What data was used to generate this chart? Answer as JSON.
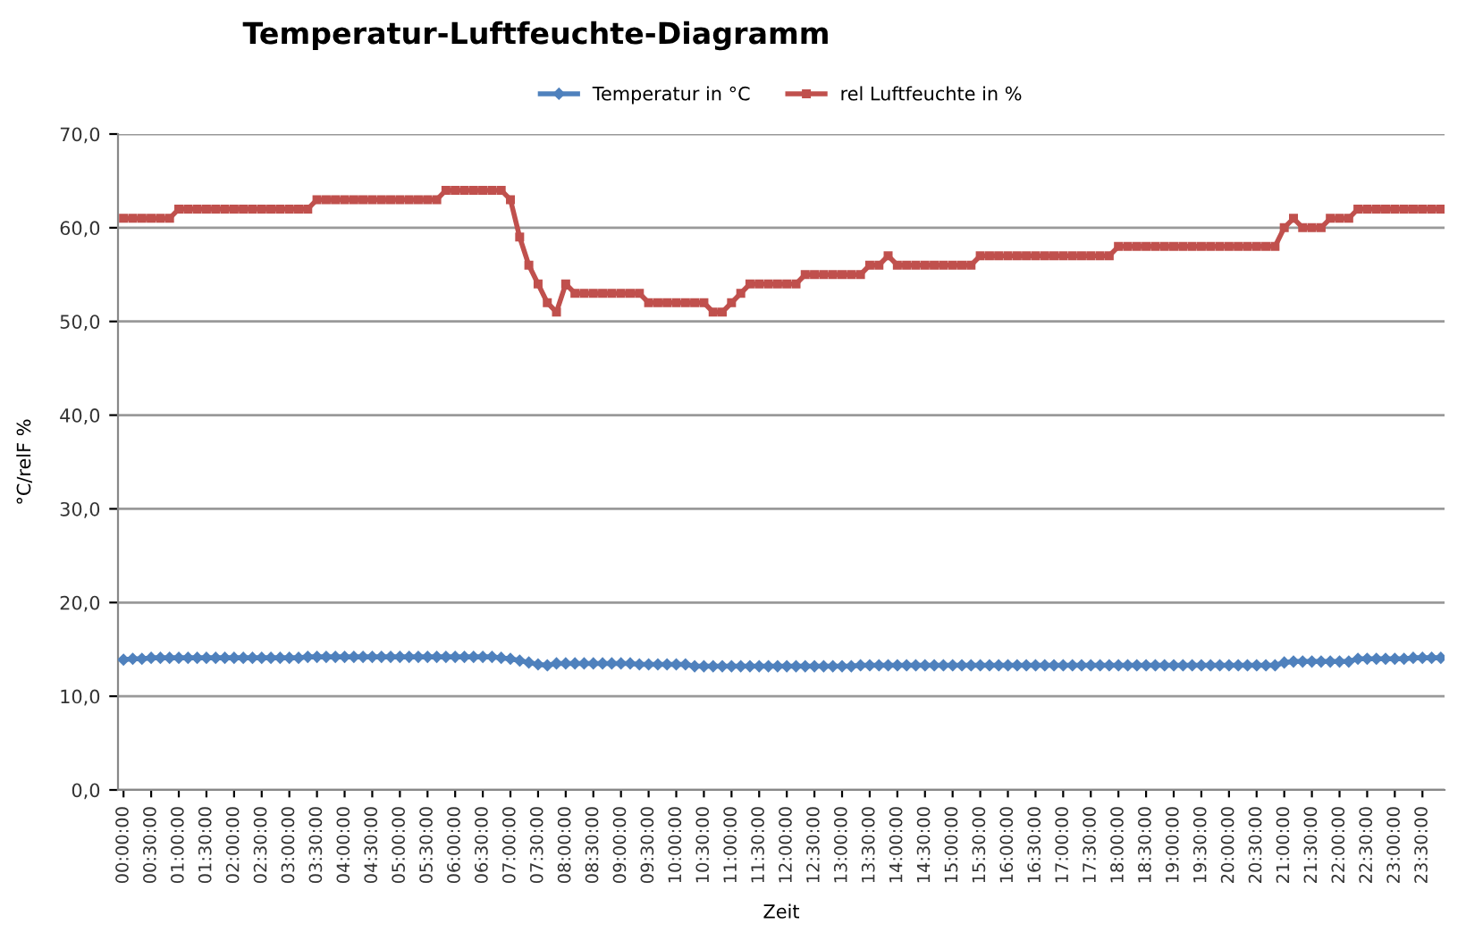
{
  "chart_data": {
    "type": "line",
    "title": "Temperatur-Luftfeuchte-Diagramm",
    "xlabel": "Zeit",
    "ylabel": "°C/relF %",
    "x": [
      0,
      0.167,
      0.333,
      0.5,
      0.667,
      0.833,
      1,
      1.167,
      1.333,
      1.5,
      1.667,
      1.833,
      2,
      2.167,
      2.333,
      2.5,
      2.667,
      2.833,
      3,
      3.167,
      3.333,
      3.5,
      3.667,
      3.833,
      4,
      4.167,
      4.333,
      4.5,
      4.667,
      4.833,
      5,
      5.167,
      5.333,
      5.5,
      5.667,
      5.833,
      6,
      6.167,
      6.333,
      6.5,
      6.667,
      6.833,
      7,
      7.167,
      7.333,
      7.5,
      7.667,
      7.833,
      8,
      8.167,
      8.333,
      8.5,
      8.667,
      8.833,
      9,
      9.167,
      9.333,
      9.5,
      9.667,
      9.833,
      10,
      10.167,
      10.333,
      10.5,
      10.667,
      10.833,
      11,
      11.167,
      11.333,
      11.5,
      11.667,
      11.833,
      12,
      12.167,
      12.333,
      12.5,
      12.667,
      12.833,
      13,
      13.167,
      13.333,
      13.5,
      13.667,
      13.833,
      14,
      14.167,
      14.333,
      14.5,
      14.667,
      14.833,
      15,
      15.167,
      15.333,
      15.5,
      15.667,
      15.833,
      16,
      16.167,
      16.333,
      16.5,
      16.667,
      16.833,
      17,
      17.167,
      17.333,
      17.5,
      17.667,
      17.833,
      18,
      18.167,
      18.333,
      18.5,
      18.667,
      18.833,
      19,
      19.167,
      19.333,
      19.5,
      19.667,
      19.833,
      20,
      20.167,
      20.333,
      20.5,
      20.667,
      20.833,
      21,
      21.167,
      21.333,
      21.5,
      21.667,
      21.833,
      22,
      22.167,
      22.333,
      22.5,
      22.667,
      22.833,
      23,
      23.167,
      23.333,
      23.5,
      23.667,
      23.833
    ],
    "xlim": [
      -0.1,
      23.9
    ],
    "xticks": [
      {
        "value": 0,
        "label": "00:00:00"
      },
      {
        "value": 0.5,
        "label": "00:30:00"
      },
      {
        "value": 1,
        "label": "01:00:00"
      },
      {
        "value": 1.5,
        "label": "01:30:00"
      },
      {
        "value": 2,
        "label": "02:00:00"
      },
      {
        "value": 2.5,
        "label": "02:30:00"
      },
      {
        "value": 3,
        "label": "03:00:00"
      },
      {
        "value": 3.5,
        "label": "03:30:00"
      },
      {
        "value": 4,
        "label": "04:00:00"
      },
      {
        "value": 4.5,
        "label": "04:30:00"
      },
      {
        "value": 5,
        "label": "05:00:00"
      },
      {
        "value": 5.5,
        "label": "05:30:00"
      },
      {
        "value": 6,
        "label": "06:00:00"
      },
      {
        "value": 6.5,
        "label": "06:30:00"
      },
      {
        "value": 7,
        "label": "07:00:00"
      },
      {
        "value": 7.5,
        "label": "07:30:00"
      },
      {
        "value": 8,
        "label": "08:00:00"
      },
      {
        "value": 8.5,
        "label": "08:30:00"
      },
      {
        "value": 9,
        "label": "09:00:00"
      },
      {
        "value": 9.5,
        "label": "09:30:00"
      },
      {
        "value": 10,
        "label": "10:00:00"
      },
      {
        "value": 10.5,
        "label": "10:30:00"
      },
      {
        "value": 11,
        "label": "11:00:00"
      },
      {
        "value": 11.5,
        "label": "11:30:00"
      },
      {
        "value": 12,
        "label": "12:00:00"
      },
      {
        "value": 12.5,
        "label": "12:30:00"
      },
      {
        "value": 13,
        "label": "13:00:00"
      },
      {
        "value": 13.5,
        "label": "13:30:00"
      },
      {
        "value": 14,
        "label": "14:00:00"
      },
      {
        "value": 14.5,
        "label": "14:30:00"
      },
      {
        "value": 15,
        "label": "15:00:00"
      },
      {
        "value": 15.5,
        "label": "15:30:00"
      },
      {
        "value": 16,
        "label": "16:00:00"
      },
      {
        "value": 16.5,
        "label": "16:30:00"
      },
      {
        "value": 17,
        "label": "17:00:00"
      },
      {
        "value": 17.5,
        "label": "17:30:00"
      },
      {
        "value": 18,
        "label": "18:00:00"
      },
      {
        "value": 18.5,
        "label": "18:30:00"
      },
      {
        "value": 19,
        "label": "19:00:00"
      },
      {
        "value": 19.5,
        "label": "19:30:00"
      },
      {
        "value": 20,
        "label": "20:00:00"
      },
      {
        "value": 20.5,
        "label": "20:30:00"
      },
      {
        "value": 21,
        "label": "21:00:00"
      },
      {
        "value": 21.5,
        "label": "21:30:00"
      },
      {
        "value": 22,
        "label": "22:00:00"
      },
      {
        "value": 22.5,
        "label": "22:30:00"
      },
      {
        "value": 23,
        "label": "23:00:00"
      },
      {
        "value": 23.5,
        "label": "23:30:00"
      }
    ],
    "series": [
      {
        "name": "Temperatur in °C",
        "color": "#4f81bd",
        "marker": "diamond",
        "values": [
          13.9,
          14.0,
          14.0,
          14.1,
          14.1,
          14.1,
          14.1,
          14.1,
          14.1,
          14.1,
          14.1,
          14.1,
          14.1,
          14.1,
          14.1,
          14.1,
          14.1,
          14.1,
          14.1,
          14.1,
          14.2,
          14.2,
          14.2,
          14.2,
          14.2,
          14.2,
          14.2,
          14.2,
          14.2,
          14.2,
          14.2,
          14.2,
          14.2,
          14.2,
          14.2,
          14.2,
          14.2,
          14.2,
          14.2,
          14.2,
          14.2,
          14.1,
          14.0,
          13.8,
          13.6,
          13.4,
          13.3,
          13.5,
          13.5,
          13.5,
          13.5,
          13.5,
          13.5,
          13.5,
          13.5,
          13.5,
          13.4,
          13.4,
          13.4,
          13.4,
          13.4,
          13.4,
          13.2,
          13.2,
          13.2,
          13.2,
          13.2,
          13.2,
          13.2,
          13.2,
          13.2,
          13.2,
          13.2,
          13.2,
          13.2,
          13.2,
          13.2,
          13.2,
          13.2,
          13.2,
          13.3,
          13.3,
          13.3,
          13.3,
          13.3,
          13.3,
          13.3,
          13.3,
          13.3,
          13.3,
          13.3,
          13.3,
          13.3,
          13.3,
          13.3,
          13.3,
          13.3,
          13.3,
          13.3,
          13.3,
          13.3,
          13.3,
          13.3,
          13.3,
          13.3,
          13.3,
          13.3,
          13.3,
          13.3,
          13.3,
          13.3,
          13.3,
          13.3,
          13.3,
          13.3,
          13.3,
          13.3,
          13.3,
          13.3,
          13.3,
          13.3,
          13.3,
          13.3,
          13.3,
          13.3,
          13.3,
          13.6,
          13.7,
          13.7,
          13.7,
          13.7,
          13.7,
          13.7,
          13.7,
          14.0,
          14.0,
          14.0,
          14.0,
          14.0,
          14.0,
          14.1,
          14.1,
          14.1,
          14.1
        ]
      },
      {
        "name": "rel Luftfeuchte in %",
        "color": "#c0504d",
        "marker": "square",
        "values": [
          61,
          61,
          61,
          61,
          61,
          61,
          62,
          62,
          62,
          62,
          62,
          62,
          62,
          62,
          62,
          62,
          62,
          62,
          62,
          62,
          62,
          63,
          63,
          63,
          63,
          63,
          63,
          63,
          63,
          63,
          63,
          63,
          63,
          63,
          63,
          64,
          64,
          64,
          64,
          64,
          64,
          64,
          63,
          59,
          56,
          54,
          52,
          51,
          54,
          53,
          53,
          53,
          53,
          53,
          53,
          53,
          53,
          52,
          52,
          52,
          52,
          52,
          52,
          52,
          51,
          51,
          52,
          53,
          54,
          54,
          54,
          54,
          54,
          54,
          55,
          55,
          55,
          55,
          55,
          55,
          55,
          56,
          56,
          57,
          56,
          56,
          56,
          56,
          56,
          56,
          56,
          56,
          56,
          57,
          57,
          57,
          57,
          57,
          57,
          57,
          57,
          57,
          57,
          57,
          57,
          57,
          57,
          57,
          58,
          58,
          58,
          58,
          58,
          58,
          58,
          58,
          58,
          58,
          58,
          58,
          58,
          58,
          58,
          58,
          58,
          58,
          60,
          61,
          60,
          60,
          60,
          61,
          61,
          61,
          62,
          62,
          62,
          62,
          62,
          62,
          62,
          62,
          62,
          62
        ]
      }
    ],
    "ylim": [
      0,
      70
    ],
    "yticks": [
      {
        "value": 0,
        "label": "0,0"
      },
      {
        "value": 10,
        "label": "10,0"
      },
      {
        "value": 20,
        "label": "20,0"
      },
      {
        "value": 30,
        "label": "30,0"
      },
      {
        "value": 40,
        "label": "40,0"
      },
      {
        "value": 50,
        "label": "50,0"
      },
      {
        "value": 60,
        "label": "60,0"
      },
      {
        "value": 70,
        "label": "70,0"
      }
    ],
    "grid": "y",
    "legend": "top"
  }
}
